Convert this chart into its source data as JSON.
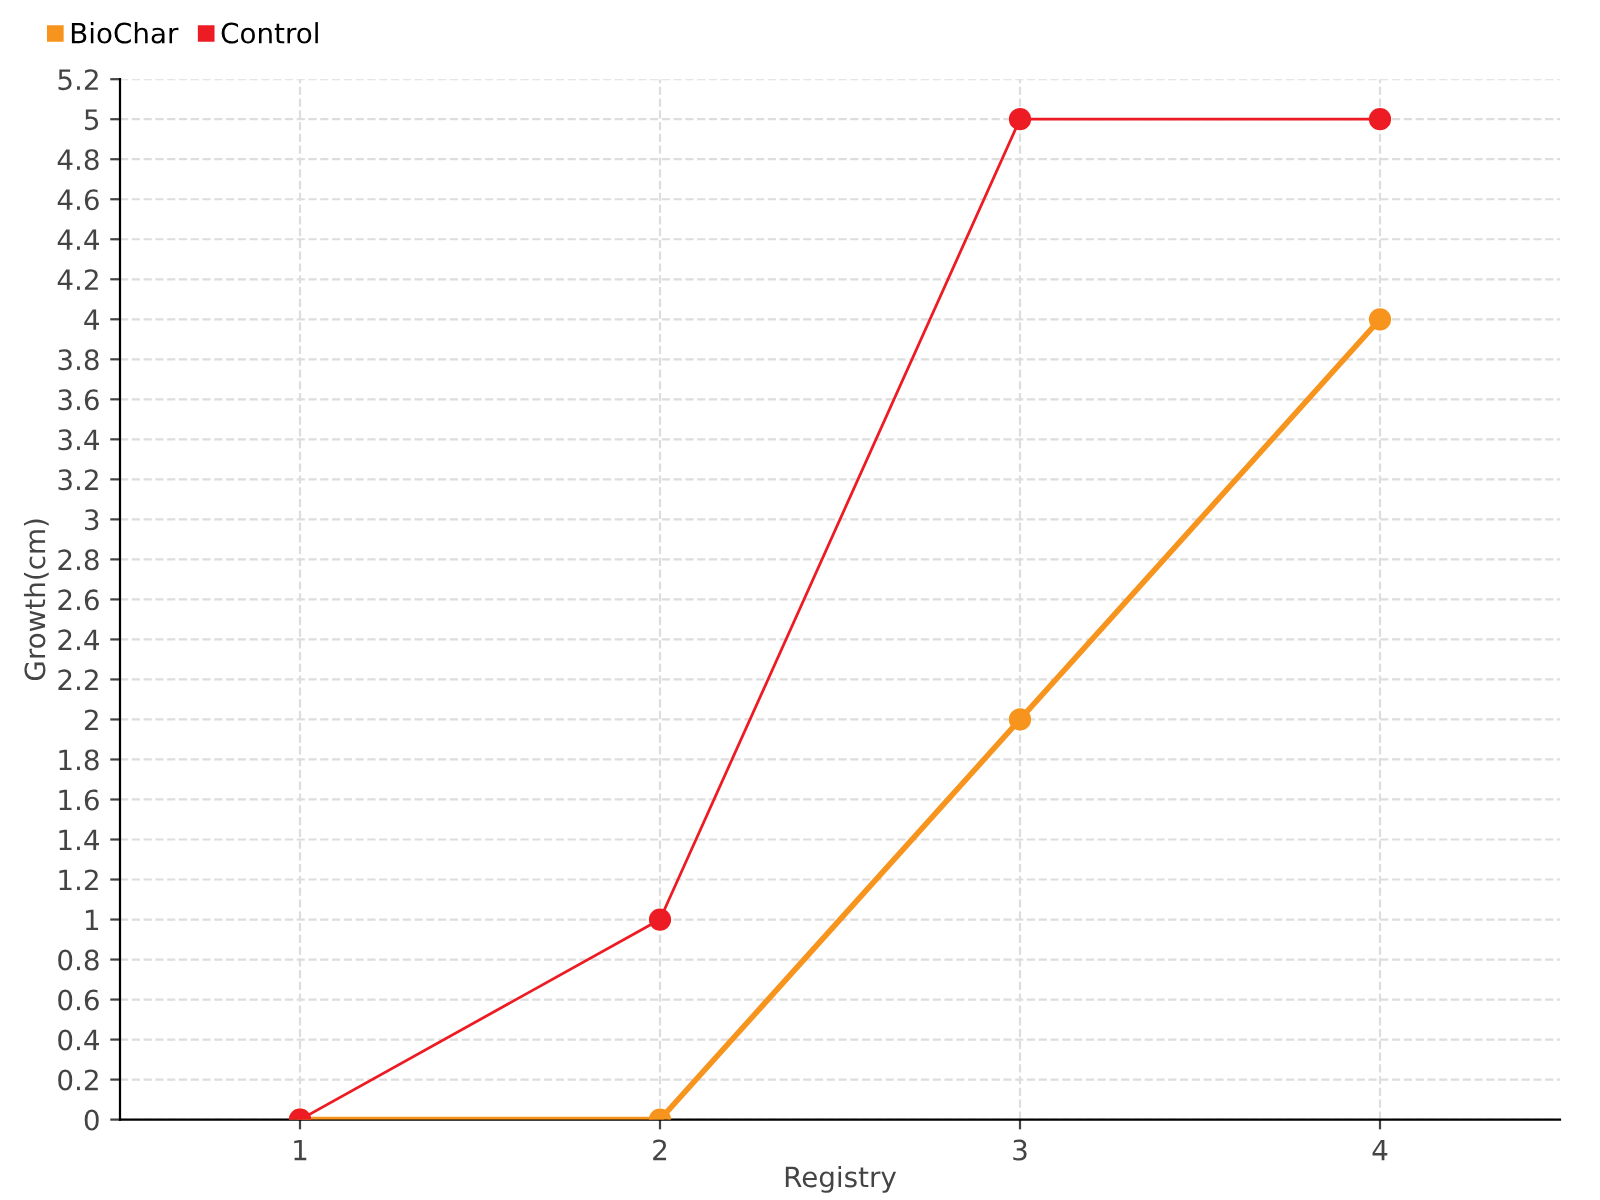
{
  "chart_data": {
    "type": "line",
    "xlabel": "Registry",
    "ylabel": "Growth(cm)",
    "x": [
      1,
      2,
      3,
      4
    ],
    "series": [
      {
        "name": "BioChar",
        "color": "#f7941d",
        "values": [
          0,
          0,
          2,
          4
        ]
      },
      {
        "name": "Control",
        "color": "#ed1c24",
        "values": [
          0,
          1,
          5,
          5
        ]
      }
    ],
    "xlim": [
      0.5,
      4.5
    ],
    "xticks": [
      1,
      2,
      3,
      4
    ],
    "ylim": [
      0,
      5.2
    ],
    "yticks": [
      0,
      0.2,
      0.4,
      0.6,
      0.8,
      1,
      1.2,
      1.4,
      1.6,
      1.8,
      2,
      2.2,
      2.4,
      2.6,
      2.8,
      3,
      3.2,
      3.4,
      3.6,
      3.8,
      4,
      4.2,
      4.4,
      4.6,
      4.8,
      5,
      5.2
    ],
    "grid": true,
    "legend": "top left",
    "marker": "circle",
    "line_style": "solid"
  }
}
